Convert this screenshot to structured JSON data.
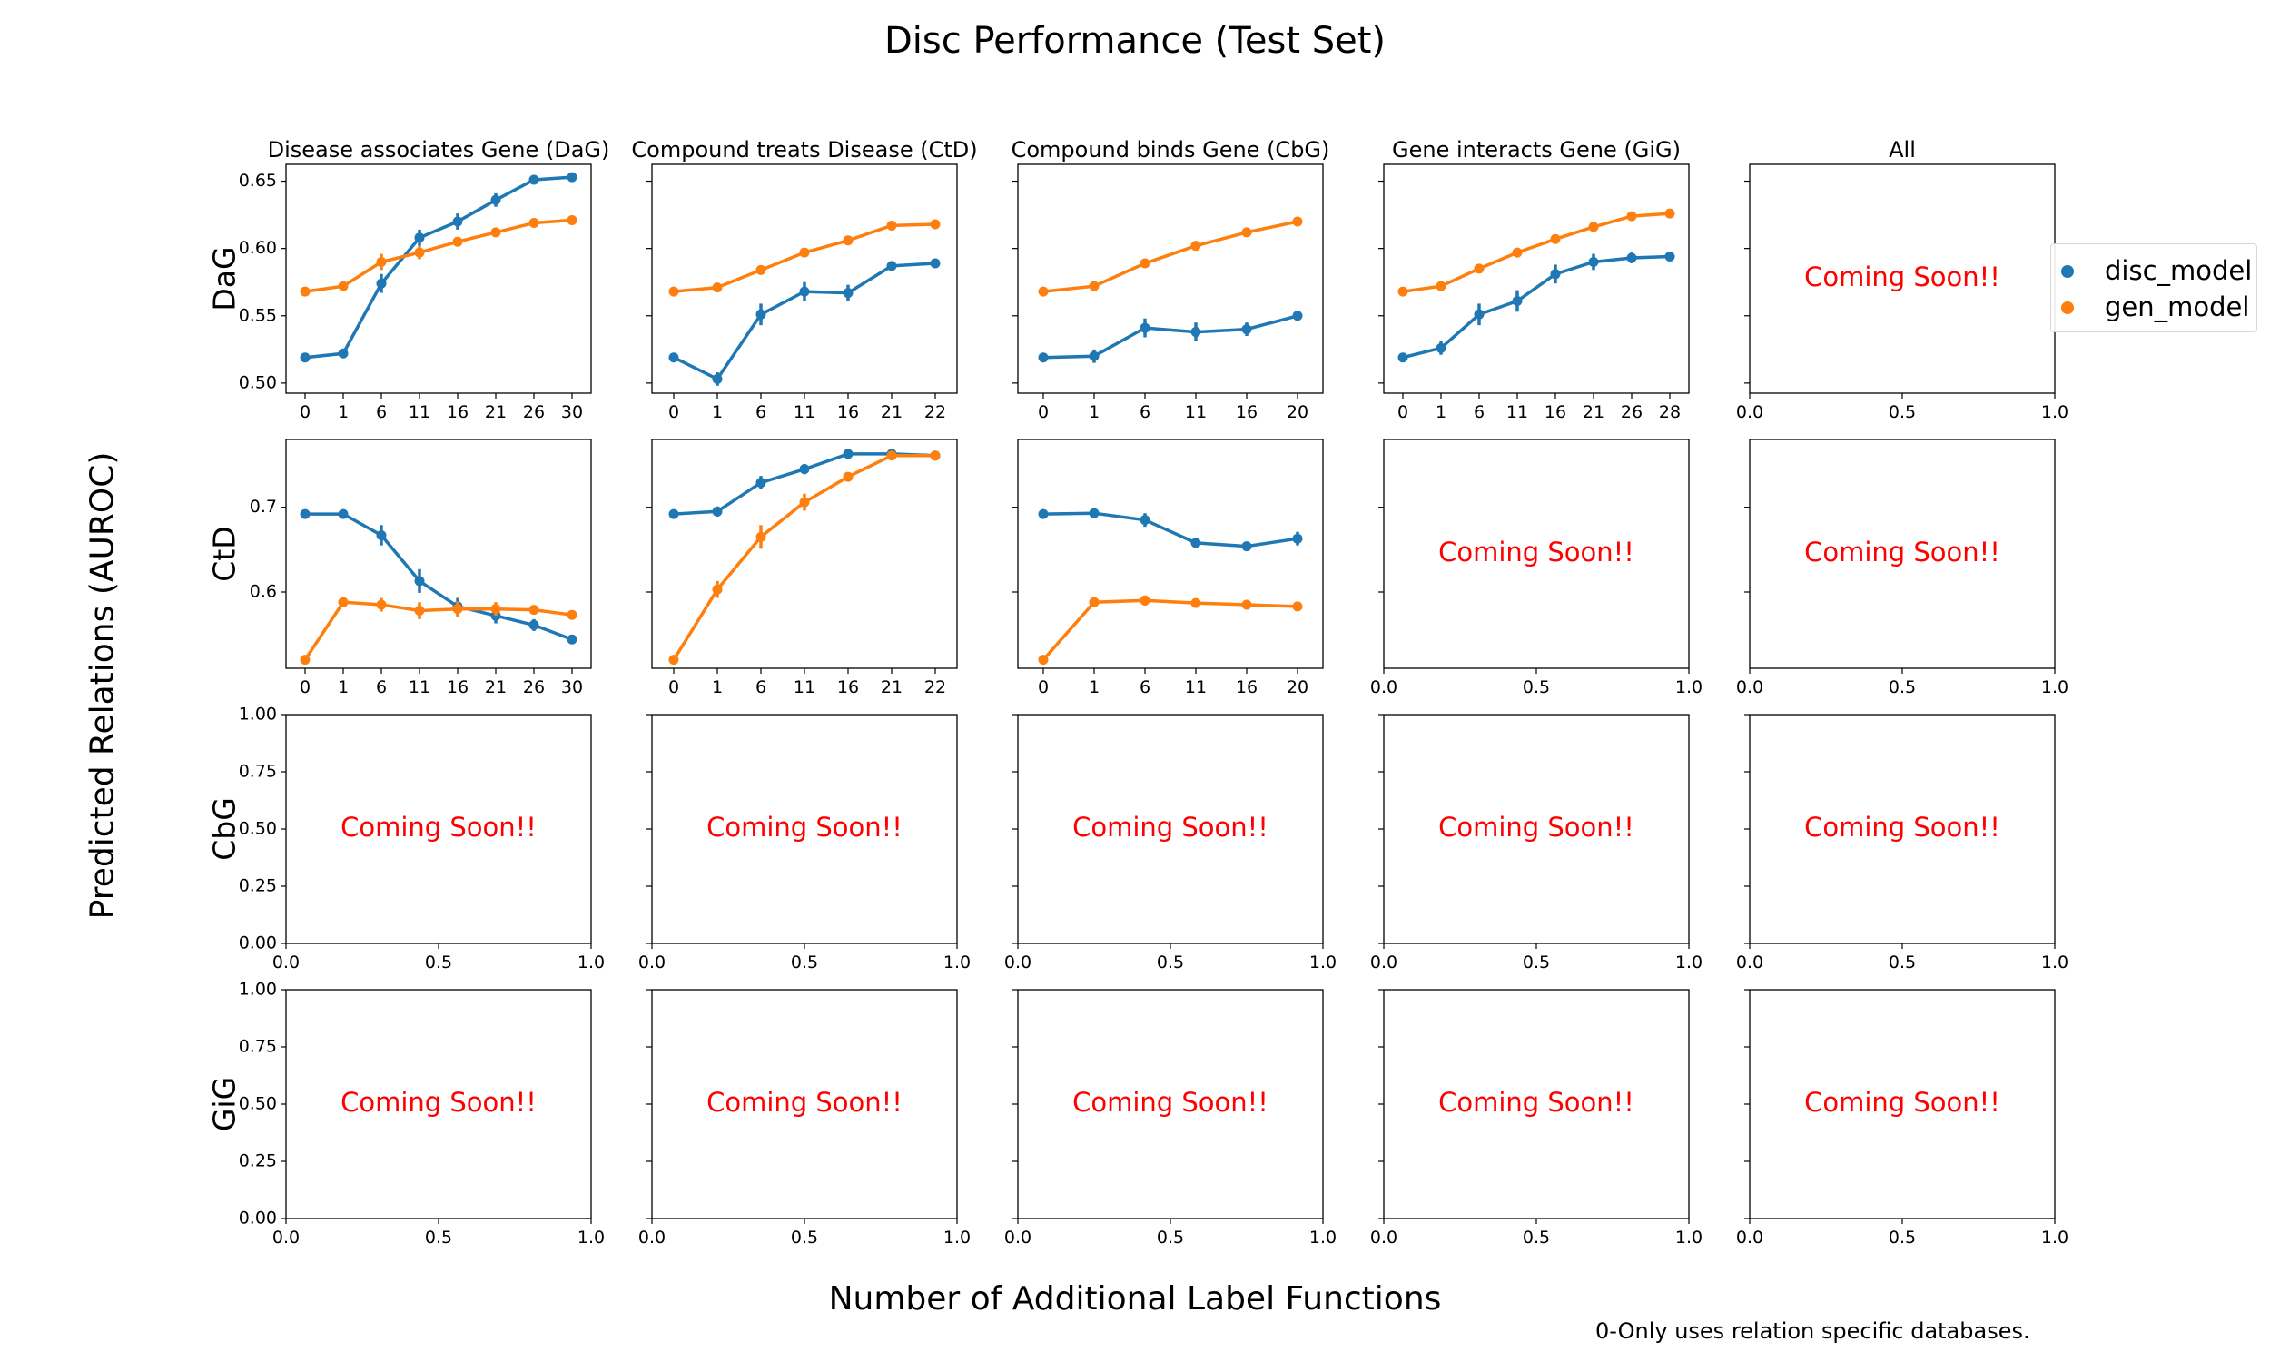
{
  "figure": {
    "title": "Disc Performance (Test Set)",
    "xlabel": "Number of Additional Label Functions",
    "ylabel": "Predicted Relations (AUROC)",
    "note": "0-Only uses relation specific databases."
  },
  "colors": {
    "disc_model": "#1f77b4",
    "gen_model": "#ff7f0e",
    "placeholder_text": "#ff0000"
  },
  "legend": [
    {
      "label": "disc_model",
      "color": "#1f77b4"
    },
    {
      "label": "gen_model",
      "color": "#ff7f0e"
    }
  ],
  "column_titles": [
    "Disease associates Gene (DaG)",
    "Compound treats Disease (CtD)",
    "Compound binds Gene (CbG)",
    "Gene interacts Gene (GiG)",
    "All"
  ],
  "row_labels": [
    "DaG",
    "CtD",
    "CbG",
    "GiG"
  ],
  "placeholder_text": "Coming Soon!!",
  "row_yaxis": [
    {
      "ticks": [
        0.5,
        0.55,
        0.6,
        0.65
      ],
      "tick_labels": [
        "0.50",
        "0.55",
        "0.60",
        "0.65"
      ],
      "ylim": [
        0.4925,
        0.6625
      ]
    },
    {
      "ticks": [
        0.6,
        0.7
      ],
      "tick_labels": [
        "0.6",
        "0.7"
      ],
      "ylim": [
        0.51,
        0.78
      ]
    },
    {
      "ticks": [
        0,
        0.25,
        0.5,
        0.75,
        1.0
      ],
      "tick_labels": [
        "0.00",
        "0.25",
        "0.50",
        "0.75",
        "1.00"
      ],
      "ylim": [
        0,
        1
      ]
    },
    {
      "ticks": [
        0,
        0.25,
        0.5,
        0.75,
        1.0
      ],
      "tick_labels": [
        "0.00",
        "0.25",
        "0.50",
        "0.75",
        "1.00"
      ],
      "ylim": [
        0,
        1
      ]
    }
  ],
  "placeholder_xaxis": {
    "ticks": [
      0,
      0.5,
      1.0
    ],
    "tick_labels": [
      "0.0",
      "0.5",
      "1.0"
    ]
  },
  "chart_data": [
    {
      "row": 0,
      "col": 0,
      "type": "line",
      "categories": [
        "0",
        "1",
        "6",
        "11",
        "16",
        "21",
        "26",
        "30"
      ],
      "series": [
        {
          "name": "disc_model",
          "values": [
            0.519,
            0.522,
            0.574,
            0.608,
            0.62,
            0.636,
            0.651,
            0.653
          ],
          "errors": [
            0.002,
            0.003,
            0.007,
            0.006,
            0.006,
            0.005,
            0.002,
            0.002
          ]
        },
        {
          "name": "gen_model",
          "values": [
            0.568,
            0.572,
            0.59,
            0.597,
            0.605,
            0.612,
            0.619,
            0.621
          ],
          "errors": [
            0.002,
            0.002,
            0.006,
            0.005,
            0.003,
            0.002,
            0.002,
            0.002
          ]
        }
      ]
    },
    {
      "row": 0,
      "col": 1,
      "type": "line",
      "categories": [
        "0",
        "1",
        "6",
        "11",
        "16",
        "21",
        "22"
      ],
      "series": [
        {
          "name": "disc_model",
          "values": [
            0.519,
            0.503,
            0.551,
            0.568,
            0.567,
            0.587,
            0.589
          ],
          "errors": [
            0.002,
            0.005,
            0.008,
            0.007,
            0.006,
            0.002,
            0.002
          ]
        },
        {
          "name": "gen_model",
          "values": [
            0.568,
            0.571,
            0.584,
            0.597,
            0.606,
            0.617,
            0.618
          ],
          "errors": [
            0.002,
            0.002,
            0.002,
            0.002,
            0.002,
            0.002,
            0.002
          ]
        }
      ]
    },
    {
      "row": 0,
      "col": 2,
      "type": "line",
      "categories": [
        "0",
        "1",
        "6",
        "11",
        "16",
        "20"
      ],
      "series": [
        {
          "name": "disc_model",
          "values": [
            0.519,
            0.52,
            0.541,
            0.538,
            0.54,
            0.55
          ],
          "errors": [
            0.002,
            0.005,
            0.007,
            0.007,
            0.005,
            0.002
          ]
        },
        {
          "name": "gen_model",
          "values": [
            0.568,
            0.572,
            0.589,
            0.602,
            0.612,
            0.62
          ],
          "errors": [
            0.002,
            0.002,
            0.002,
            0.002,
            0.002,
            0.002
          ]
        }
      ]
    },
    {
      "row": 0,
      "col": 3,
      "type": "line",
      "categories": [
        "0",
        "1",
        "6",
        "11",
        "16",
        "21",
        "26",
        "28"
      ],
      "series": [
        {
          "name": "disc_model",
          "values": [
            0.519,
            0.526,
            0.551,
            0.561,
            0.581,
            0.59,
            0.593,
            0.594
          ],
          "errors": [
            0.002,
            0.005,
            0.008,
            0.008,
            0.007,
            0.006,
            0.004,
            0.002
          ]
        },
        {
          "name": "gen_model",
          "values": [
            0.568,
            0.572,
            0.585,
            0.597,
            0.607,
            0.616,
            0.624,
            0.626
          ],
          "errors": [
            0.002,
            0.002,
            0.002,
            0.002,
            0.002,
            0.002,
            0.002,
            0.002
          ]
        }
      ]
    },
    {
      "row": 1,
      "col": 0,
      "type": "line",
      "categories": [
        "0",
        "1",
        "6",
        "11",
        "16",
        "21",
        "26",
        "30"
      ],
      "series": [
        {
          "name": "disc_model",
          "values": [
            0.692,
            0.692,
            0.667,
            0.613,
            0.583,
            0.572,
            0.561,
            0.544
          ],
          "errors": [
            0.003,
            0.003,
            0.012,
            0.014,
            0.01,
            0.009,
            0.007,
            0.003
          ]
        },
        {
          "name": "gen_model",
          "values": [
            0.52,
            0.588,
            0.585,
            0.578,
            0.58,
            0.58,
            0.579,
            0.573
          ],
          "errors": [
            0.003,
            0.004,
            0.008,
            0.01,
            0.009,
            0.008,
            0.005,
            0.003
          ]
        }
      ]
    },
    {
      "row": 1,
      "col": 1,
      "type": "line",
      "categories": [
        "0",
        "1",
        "6",
        "11",
        "16",
        "21",
        "22"
      ],
      "series": [
        {
          "name": "disc_model",
          "values": [
            0.692,
            0.695,
            0.729,
            0.745,
            0.763,
            0.763,
            0.761
          ],
          "errors": [
            0.003,
            0.006,
            0.008,
            0.006,
            0.003,
            0.003,
            0.003
          ]
        },
        {
          "name": "gen_model",
          "values": [
            0.52,
            0.603,
            0.665,
            0.706,
            0.736,
            0.761,
            0.761
          ],
          "errors": [
            0.003,
            0.01,
            0.014,
            0.01,
            0.005,
            0.004,
            0.003
          ]
        }
      ]
    },
    {
      "row": 1,
      "col": 2,
      "type": "line",
      "categories": [
        "0",
        "1",
        "6",
        "11",
        "16",
        "20"
      ],
      "series": [
        {
          "name": "disc_model",
          "values": [
            0.692,
            0.693,
            0.685,
            0.658,
            0.654,
            0.663
          ],
          "errors": [
            0.003,
            0.006,
            0.008,
            0.006,
            0.003,
            0.008
          ]
        },
        {
          "name": "gen_model",
          "values": [
            0.52,
            0.588,
            0.59,
            0.587,
            0.585,
            0.583
          ],
          "errors": [
            0.003,
            0.004,
            0.006,
            0.004,
            0.003,
            0.003
          ]
        }
      ]
    }
  ]
}
